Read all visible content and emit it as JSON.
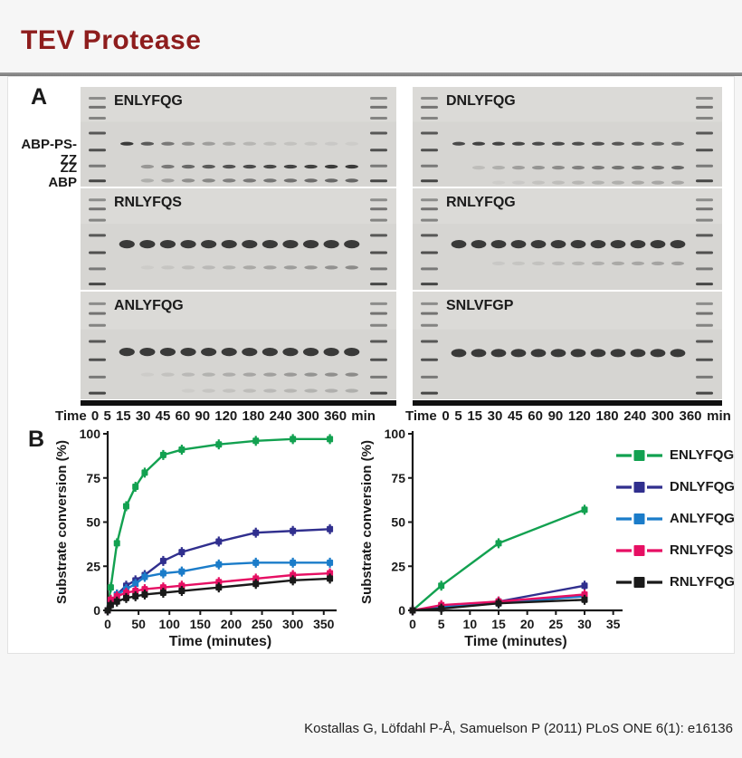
{
  "title": "TEV Protease",
  "citation": "Kostallas G, Löfdahl P-Å, Samuelson P (2011) PLoS ONE 6(1): e16136",
  "panelA": {
    "label": "A",
    "row_labels": [
      "ABP-PS-ZZ",
      "ZZ",
      "ABP"
    ],
    "time_axis": {
      "prefix": "Time",
      "ticks": [
        "0",
        "5",
        "15",
        "30",
        "45",
        "60",
        "90",
        "120",
        "180",
        "240",
        "300",
        "360"
      ],
      "unit": "min"
    },
    "ladder": [
      0.1,
      0.19,
      0.3,
      0.45,
      0.62,
      0.78,
      0.93
    ],
    "ladder_opacity": [
      0.45,
      0.6,
      0.5,
      0.75,
      0.8,
      0.55,
      0.85
    ],
    "gels": [
      {
        "name": "ENLYFQG",
        "bands": [
          {
            "y": 0.57,
            "thick": false,
            "intensities": [
              1,
              0.8,
              0.6,
              0.45,
              0.35,
              0.28,
              0.2,
              0.15,
              0.12,
              0.1,
              0.08,
              0.06
            ]
          },
          {
            "y": 0.8,
            "thick": false,
            "intensities": [
              0,
              0.4,
              0.6,
              0.7,
              0.8,
              0.85,
              0.9,
              0.92,
              0.95,
              0.97,
              1,
              1
            ]
          },
          {
            "y": 0.94,
            "thick": false,
            "intensities": [
              0,
              0.25,
              0.35,
              0.45,
              0.5,
              0.55,
              0.6,
              0.62,
              0.65,
              0.68,
              0.7,
              0.72
            ]
          }
        ]
      },
      {
        "name": "DNLYFQG",
        "bands": [
          {
            "y": 0.57,
            "thick": false,
            "intensities": [
              0.9,
              0.95,
              0.95,
              0.92,
              0.9,
              0.9,
              0.88,
              0.85,
              0.82,
              0.8,
              0.75,
              0.72
            ]
          },
          {
            "y": 0.81,
            "thick": false,
            "intensities": [
              0,
              0.15,
              0.25,
              0.35,
              0.42,
              0.48,
              0.55,
              0.6,
              0.63,
              0.66,
              0.68,
              0.7
            ]
          },
          {
            "y": 0.96,
            "thick": false,
            "intensities": [
              0,
              0,
              0.05,
              0.08,
              0.12,
              0.15,
              0.2,
              0.22,
              0.25,
              0.28,
              0.3,
              0.3
            ]
          }
        ]
      },
      {
        "name": "RNLYFQS",
        "bands": [
          {
            "y": 0.55,
            "thick": true,
            "intensities": [
              1,
              1,
              1,
              1,
              1,
              1,
              1,
              1,
              1,
              1,
              1,
              1
            ]
          },
          {
            "y": 0.78,
            "thick": false,
            "intensities": [
              0,
              0.05,
              0.1,
              0.15,
              0.18,
              0.22,
              0.28,
              0.32,
              0.36,
              0.4,
              0.44,
              0.48
            ]
          }
        ]
      },
      {
        "name": "RNLYFQG",
        "bands": [
          {
            "y": 0.55,
            "thick": true,
            "intensities": [
              1,
              1,
              1,
              1,
              1,
              1,
              1,
              1,
              1,
              1,
              1,
              1
            ]
          },
          {
            "y": 0.74,
            "thick": false,
            "intensities": [
              0,
              0,
              0.08,
              0.1,
              0.12,
              0.16,
              0.2,
              0.24,
              0.28,
              0.3,
              0.32,
              0.34
            ]
          }
        ]
      },
      {
        "name": "ANLYFQG",
        "bands": [
          {
            "y": 0.56,
            "thick": true,
            "intensities": [
              1,
              1,
              1,
              1,
              1,
              1,
              1,
              1,
              1,
              1,
              1,
              1
            ]
          },
          {
            "y": 0.77,
            "thick": false,
            "intensities": [
              0,
              0.06,
              0.12,
              0.18,
              0.22,
              0.26,
              0.3,
              0.34,
              0.38,
              0.42,
              0.45,
              0.48
            ]
          },
          {
            "y": 0.92,
            "thick": false,
            "intensities": [
              0,
              0,
              0,
              0.06,
              0.1,
              0.12,
              0.15,
              0.18,
              0.2,
              0.22,
              0.24,
              0.25
            ]
          }
        ]
      },
      {
        "name": "SNLVFGP",
        "bands": [
          {
            "y": 0.57,
            "thick": true,
            "intensities": [
              1,
              1,
              1,
              1,
              1,
              1,
              1,
              1,
              1,
              1,
              1,
              1
            ]
          }
        ]
      }
    ]
  },
  "panelB": {
    "label": "B"
  },
  "chart_data": [
    {
      "type": "line",
      "title": "",
      "xlabel": "Time (minutes)",
      "ylabel": "Substrate conversion (%)",
      "x": [
        0,
        5,
        15,
        30,
        45,
        60,
        90,
        120,
        180,
        240,
        300,
        360
      ],
      "xlim": [
        0,
        365
      ],
      "ylim": [
        0,
        100
      ],
      "xticks": [
        0,
        50,
        100,
        150,
        200,
        250,
        300,
        350
      ],
      "yticks": [
        0,
        25,
        50,
        75,
        100
      ],
      "grid": false,
      "series": [
        {
          "name": "ENLYFQG",
          "color": "#12a150",
          "values": [
            0,
            13,
            38,
            59,
            70,
            78,
            88,
            91,
            94,
            96,
            97,
            97
          ]
        },
        {
          "name": "DNLYFQG",
          "color": "#302f8e",
          "values": [
            0,
            5,
            9,
            14,
            17,
            20,
            28,
            33,
            39,
            44,
            45,
            46
          ]
        },
        {
          "name": "ANLYFQG",
          "color": "#1b7cc9",
          "values": [
            0,
            5,
            9,
            12,
            15,
            19,
            21,
            22,
            26,
            27,
            27,
            27
          ]
        },
        {
          "name": "RNLYFQS",
          "color": "#e60f63",
          "values": [
            0,
            6,
            8,
            10,
            11,
            12,
            13,
            14,
            16,
            18,
            20,
            21
          ]
        },
        {
          "name": "RNLYFQG",
          "color": "#1a1a1a",
          "values": [
            0,
            3,
            5,
            7,
            8,
            9,
            10,
            11,
            13,
            15,
            17,
            18
          ]
        }
      ],
      "legend_position": "right-outside"
    },
    {
      "type": "line",
      "title": "",
      "xlabel": "Time (minutes)",
      "ylabel": "Substrate conversion (%)",
      "x": [
        0,
        5,
        15,
        30
      ],
      "xlim": [
        0,
        36
      ],
      "ylim": [
        0,
        100
      ],
      "xticks": [
        0,
        5,
        10,
        15,
        20,
        25,
        30,
        35
      ],
      "yticks": [
        0,
        25,
        50,
        75,
        100
      ],
      "grid": false,
      "series": [
        {
          "name": "ENLYFQG",
          "color": "#12a150",
          "values": [
            0,
            14,
            38,
            57
          ]
        },
        {
          "name": "DNLYFQG",
          "color": "#302f8e",
          "values": [
            0,
            2,
            5,
            14
          ]
        },
        {
          "name": "ANLYFQG",
          "color": "#1b7cc9",
          "values": [
            0,
            2,
            4,
            8
          ]
        },
        {
          "name": "RNLYFQS",
          "color": "#e60f63",
          "values": [
            0,
            3,
            5,
            9
          ]
        },
        {
          "name": "RNLYFQG",
          "color": "#1a1a1a",
          "values": [
            0,
            1,
            4,
            6
          ]
        }
      ],
      "legend_position": "none"
    }
  ]
}
